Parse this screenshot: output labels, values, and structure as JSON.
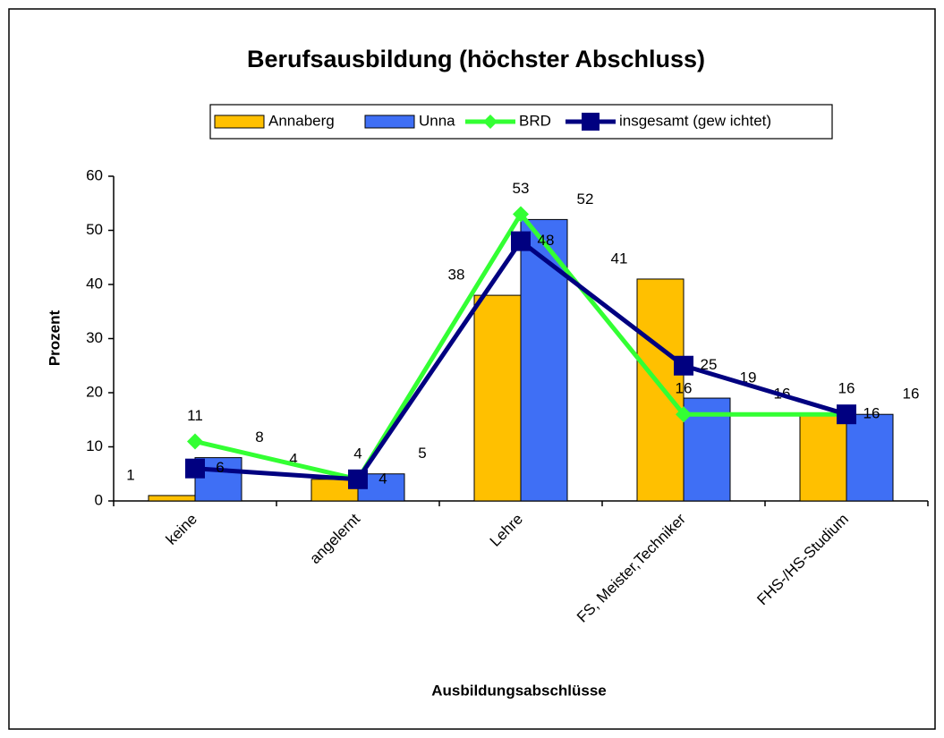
{
  "chart_data": {
    "type": "bar",
    "title": "Berufsausbildung (höchster Abschluss)",
    "x_label": "Ausbildungsabschlüsse",
    "y_label": "Prozent",
    "categories": [
      "keine",
      "angelernt",
      "Lehre",
      "FS, Meister,Techniker",
      "FHS-/HS-Studium"
    ],
    "series": [
      {
        "name": "Annaberg",
        "type": "bar",
        "color": "#FFC000",
        "values": [
          1,
          4,
          38,
          41,
          16
        ]
      },
      {
        "name": "Unna",
        "type": "bar",
        "color": "#3F6FF5",
        "values": [
          8,
          5,
          52,
          19,
          16
        ]
      },
      {
        "name": "BRD",
        "type": "line",
        "color": "#33FF33",
        "values": [
          11,
          4,
          53,
          16,
          16
        ]
      },
      {
        "name": "insgesamt (gew ichtet)",
        "type": "line",
        "color": "#000080",
        "values": [
          6,
          4,
          48,
          25,
          16
        ]
      }
    ],
    "ylim": [
      0,
      60
    ],
    "yticks": [
      0,
      10,
      20,
      30,
      40,
      50,
      60
    ],
    "legend": "top"
  }
}
